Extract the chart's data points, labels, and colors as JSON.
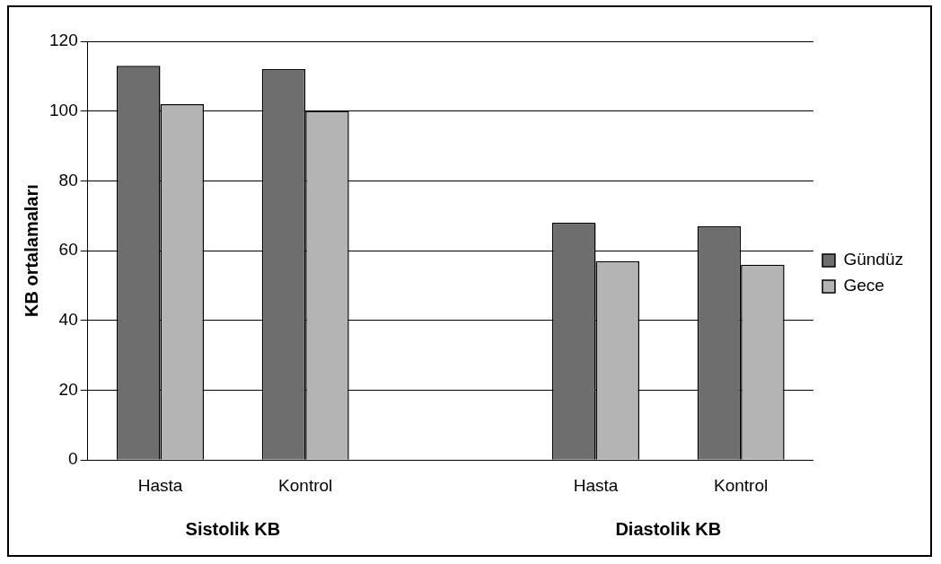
{
  "chart_data": {
    "type": "bar",
    "ylabel": "KB ortalamaları",
    "categories": [
      "Hasta",
      "Kontrol",
      null,
      "Hasta",
      "Kontrol"
    ],
    "series": [
      {
        "name": "Gündüz",
        "color": "#6e6e6e",
        "values": [
          113,
          112,
          null,
          68,
          67
        ]
      },
      {
        "name": "Gece",
        "color": "#b4b4b4",
        "values": [
          102,
          100,
          null,
          57,
          56
        ]
      }
    ],
    "ylim": [
      0,
      120
    ],
    "yticks": [
      0,
      20,
      40,
      60,
      80,
      100,
      120
    ],
    "grid": "y",
    "legend": "right",
    "annotations": [
      "Sistolik KB",
      "Diastolik KB"
    ]
  }
}
